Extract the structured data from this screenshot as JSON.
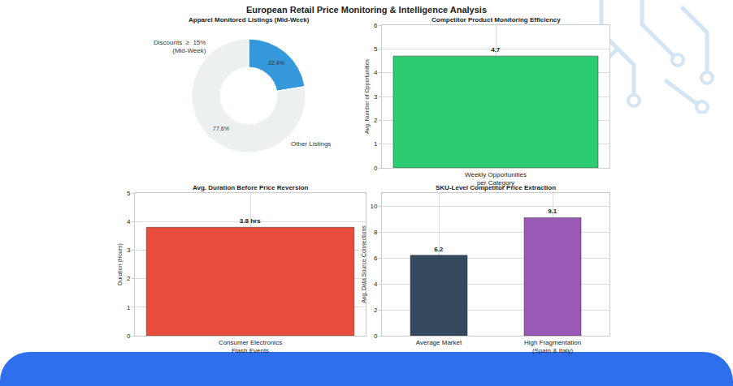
{
  "title": "European Retail Price Monitoring & Intelligence Analysis",
  "chart_data": [
    {
      "type": "pie",
      "title": "Apparel Monitored Listings (Mid-Week)",
      "categories": [
        "Discounts  ≥  15%\n(Mid-Week)",
        "Other Listings"
      ],
      "values": [
        22.4,
        77.6
      ],
      "value_labels": [
        "22.4%",
        "77.6%"
      ],
      "colors": [
        "#3498db",
        "#ecf0f1"
      ],
      "data_labels": true
    },
    {
      "type": "bar",
      "title": "Competitor Product Monitoring Efficiency",
      "categories": [
        "Weekly Opportunities\nper Category"
      ],
      "values": [
        4.7
      ],
      "color": "#2ecc71",
      "ylabel": "Avg. Number of Opportunities",
      "ylim": [
        0,
        6
      ],
      "yticks": [
        0,
        1,
        2,
        3,
        4,
        5,
        6
      ],
      "grid": true,
      "data_labels": true
    },
    {
      "type": "bar",
      "title": "Avg. Duration Before Price Reversion",
      "categories": [
        "Consumer Electronics\nFlash Events"
      ],
      "values": [
        3.8
      ],
      "value_labels": [
        "3.8 hrs"
      ],
      "color": "#e74c3c",
      "ylabel": "Duration (Hours)",
      "ylim": [
        0,
        5
      ],
      "yticks": [
        0,
        1,
        2,
        3,
        4,
        5
      ],
      "grid": true,
      "data_labels": true
    },
    {
      "type": "bar",
      "title": "SKU-Level Competitor Price Extraction",
      "categories": [
        "Average Market",
        "High Fragmentation\n(Spain & Italy)"
      ],
      "values": [
        6.2,
        9.1
      ],
      "colors": [
        "#34495e",
        "#9b59b6"
      ],
      "ylabel": "Avg. Data Source Connections",
      "ylim": [
        0,
        11
      ],
      "yticks": [
        0,
        2,
        4,
        6,
        8,
        10
      ],
      "grid": true,
      "data_labels": true
    }
  ]
}
